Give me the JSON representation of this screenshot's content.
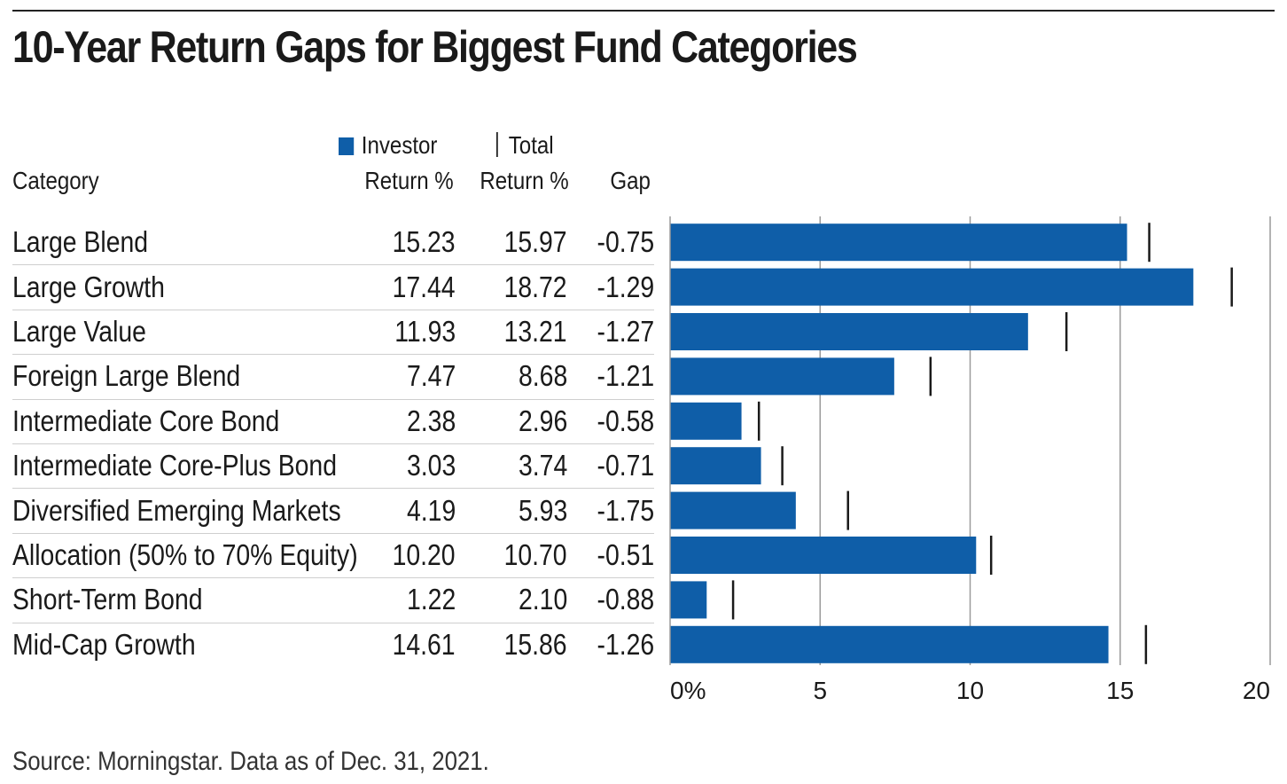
{
  "title": "10-Year Return Gaps for Biggest Fund Categories",
  "headers": {
    "category": "Category",
    "investor_line1": "Investor",
    "investor_line2": "Return %",
    "total_line1": "Total",
    "total_line2": "Return %",
    "gap": "Gap"
  },
  "colors": {
    "bar": "#0f5ea8",
    "marker": "#1a1a1a",
    "grid": "#9a9a9a"
  },
  "chart_data": {
    "type": "bar",
    "orientation": "horizontal",
    "categories": [
      "Large Blend",
      "Large Growth",
      "Large Value",
      "Foreign Large Blend",
      "Intermediate Core Bond",
      "Intermediate Core-Plus Bond",
      "Diversified Emerging Markets",
      "Allocation (50% to 70% Equity)",
      "Short-Term Bond",
      "Mid-Cap Growth"
    ],
    "series": [
      {
        "name": "Investor Return %",
        "mark": "bar",
        "values": [
          15.23,
          17.44,
          11.93,
          7.47,
          2.38,
          3.03,
          4.19,
          10.2,
          1.22,
          14.61
        ],
        "labels": [
          "15.23",
          "17.44",
          "11.93",
          "7.47",
          "2.38",
          "3.03",
          "4.19",
          "10.20",
          "1.22",
          "14.61"
        ]
      },
      {
        "name": "Total Return %",
        "mark": "tick",
        "values": [
          15.97,
          18.72,
          13.21,
          8.68,
          2.96,
          3.74,
          5.93,
          10.7,
          2.1,
          15.86
        ],
        "labels": [
          "15.97",
          "18.72",
          "13.21",
          "8.68",
          "2.96",
          "3.74",
          "5.93",
          "10.70",
          "2.10",
          "15.86"
        ]
      }
    ],
    "gap": [
      "-0.75",
      "-1.29",
      "-1.27",
      "-1.21",
      "-0.58",
      "-0.71",
      "-1.75",
      "-0.51",
      "-0.88",
      "-1.26"
    ],
    "xlim": [
      0,
      20
    ],
    "xticks": [
      0,
      5,
      10,
      15,
      20
    ],
    "xtick_labels": [
      "0%",
      "5",
      "10",
      "15",
      "20"
    ],
    "grid": true
  },
  "source": "Source: Morningstar. Data as of Dec. 31, 2021."
}
